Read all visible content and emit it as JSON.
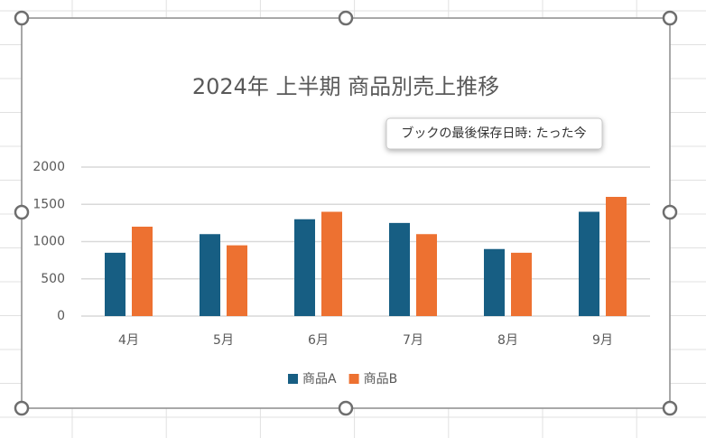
{
  "chart_data": {
    "type": "bar",
    "title": "2024年 上半期 商品別売上推移",
    "categories": [
      "4月",
      "5月",
      "6月",
      "7月",
      "8月",
      "9月"
    ],
    "series": [
      {
        "name": "商品A",
        "color": "#175e83",
        "values": [
          850,
          1100,
          1300,
          1250,
          900,
          1400
        ]
      },
      {
        "name": "商品B",
        "color": "#ed7131",
        "values": [
          1200,
          950,
          1400,
          1100,
          850,
          1600
        ]
      }
    ],
    "ylim": [
      0,
      2000
    ],
    "yticks": [
      0,
      500,
      1000,
      1500,
      2000
    ],
    "grid": true,
    "legend": "bottom"
  },
  "tooltip": "ブックの最後保存日時: たった今"
}
